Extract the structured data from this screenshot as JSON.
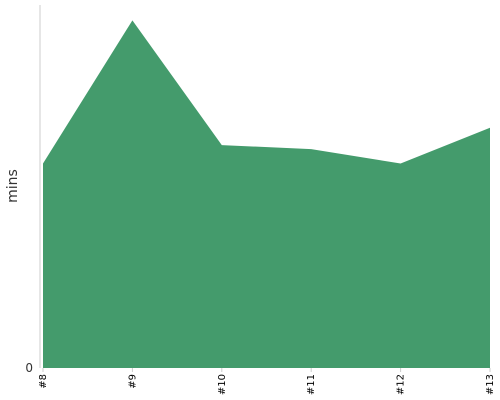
{
  "chart_data": {
    "type": "area",
    "categories": [
      "#8",
      "#9",
      "#10",
      "#11",
      "#12",
      "#13"
    ],
    "series": [
      {
        "values": [
          200,
          340,
          218,
          214,
          200,
          235
        ],
        "color": "#449b6c"
      }
    ],
    "ylabel": "mins",
    "xlabel": "",
    "title": "",
    "ylim": [
      0,
      355
    ],
    "y_ticks": [
      0
    ],
    "y_tick_labels": [
      "0"
    ],
    "grid": false,
    "legend": "none"
  }
}
